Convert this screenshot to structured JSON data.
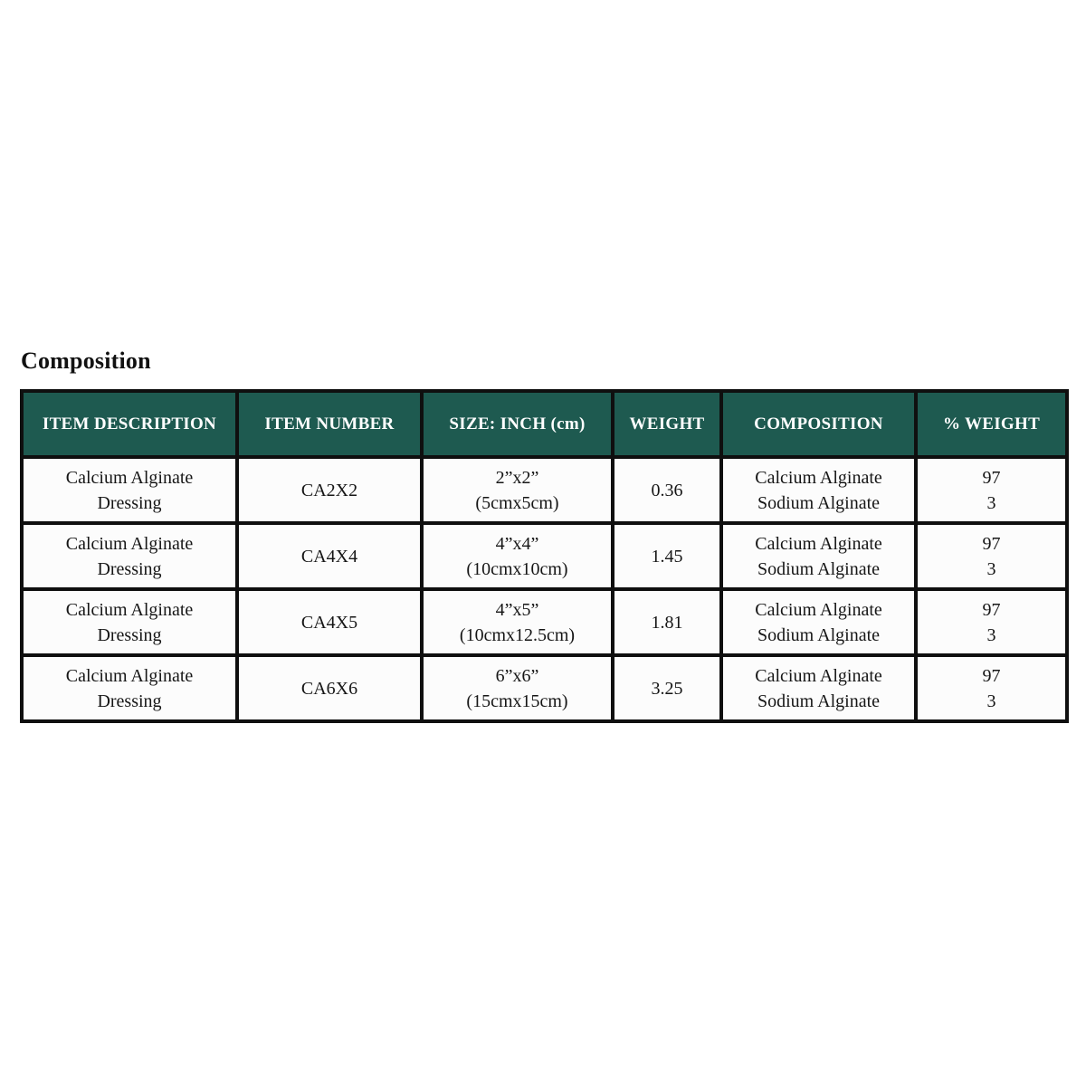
{
  "title": "Composition",
  "colors": {
    "header_bg": "#1e5a50",
    "header_text": "#ffffff",
    "border": "#0f0f0f",
    "cell_bg": "#fcfcfc",
    "page_bg": "#ffffff"
  },
  "table": {
    "columns": [
      "ITEM DESCRIPTION",
      "ITEM NUMBER",
      "SIZE: INCH (cm)",
      "WEIGHT",
      "COMPOSITION",
      "% WEIGHT"
    ],
    "rows": [
      {
        "item_description": "Calcium Alginate Dressing",
        "item_number": "CA2X2",
        "size_inch": "2”x2”",
        "size_cm": "(5cmx5cm)",
        "weight": "0.36",
        "composition_line1": "Calcium Alginate",
        "composition_line2": "Sodium Alginate",
        "pct_weight_line1": "97",
        "pct_weight_line2": "3"
      },
      {
        "item_description": "Calcium Alginate Dressing",
        "item_number": "CA4X4",
        "size_inch": "4”x4”",
        "size_cm": "(10cmx10cm)",
        "weight": "1.45",
        "composition_line1": "Calcium Alginate",
        "composition_line2": "Sodium Alginate",
        "pct_weight_line1": "97",
        "pct_weight_line2": "3"
      },
      {
        "item_description": "Calcium Alginate Dressing",
        "item_number": "CA4X5",
        "size_inch": "4”x5”",
        "size_cm": "(10cmx12.5cm)",
        "weight": "1.81",
        "composition_line1": "Calcium Alginate",
        "composition_line2": "Sodium Alginate",
        "pct_weight_line1": "97",
        "pct_weight_line2": "3"
      },
      {
        "item_description": "Calcium Alginate Dressing",
        "item_number": "CA6X6",
        "size_inch": "6”x6”",
        "size_cm": "(15cmx15cm)",
        "weight": "3.25",
        "composition_line1": "Calcium Alginate",
        "composition_line2": "Sodium Alginate",
        "pct_weight_line1": "97",
        "pct_weight_line2": "3"
      }
    ]
  }
}
